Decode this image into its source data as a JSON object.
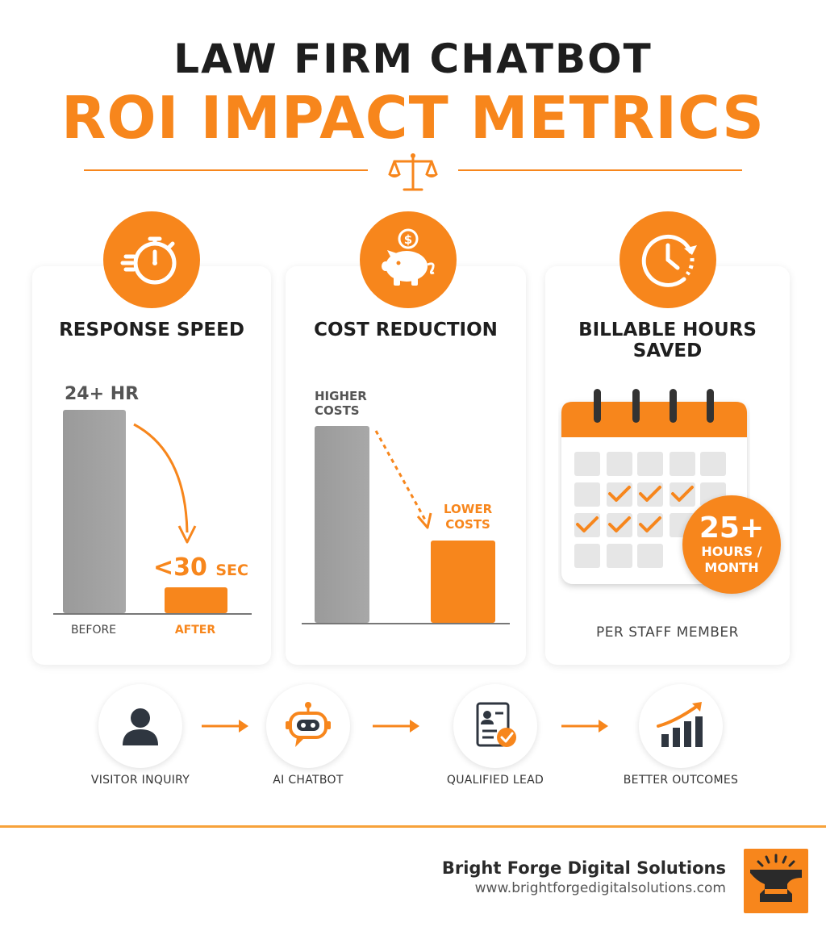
{
  "header": {
    "title_line1": "LAW FIRM CHATBOT",
    "title_line2": "ROI IMPACT METRICS",
    "divider_icon": "scales-of-justice-icon"
  },
  "colors": {
    "accent": "#f7861c",
    "grey_bar": "#a0a0a0",
    "text_dark": "#1e1e1e"
  },
  "cards": {
    "response_speed": {
      "icon": "stopwatch-icon",
      "title": "RESPONSE SPEED",
      "before_value": "24+ HR",
      "after_value_main": "<30",
      "after_value_unit": "SEC",
      "before_label": "BEFORE",
      "after_label": "AFTER"
    },
    "cost_reduction": {
      "icon": "piggy-bank-dollar-icon",
      "title": "COST REDUCTION",
      "higher_line1": "HIGHER",
      "higher_line2": "COSTS",
      "lower_line1": "LOWER",
      "lower_line2": "COSTS"
    },
    "billable_hours": {
      "icon": "clock-refresh-icon",
      "title": "BILLABLE HOURS SAVED",
      "calendar_icon": "calendar-checkmarks-icon",
      "badge_value": "25+",
      "badge_unit_line1": "HOURS /",
      "badge_unit_line2": "MONTH",
      "caption": "PER STAFF MEMBER"
    }
  },
  "flow": [
    {
      "icon": "user-icon",
      "label": "VISITOR INQUIRY"
    },
    {
      "icon": "robot-chat-icon",
      "label": "AI CHATBOT"
    },
    {
      "icon": "document-check-icon",
      "label": "QUALIFIED LEAD"
    },
    {
      "icon": "growth-chart-icon",
      "label": "BETTER OUTCOMES"
    }
  ],
  "footer": {
    "company": "Bright Forge Digital Solutions",
    "url": "www.brightforgedigitalsolutions.com",
    "logo_icon": "anvil-logo-icon"
  }
}
